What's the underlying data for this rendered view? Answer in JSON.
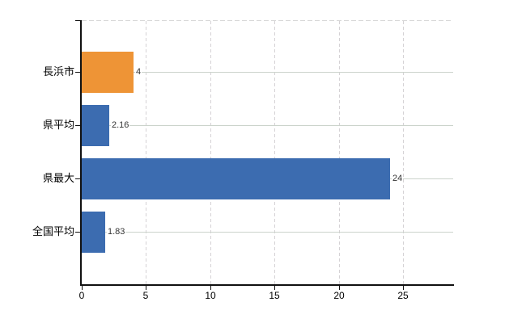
{
  "chart_data": {
    "type": "bar",
    "orientation": "horizontal",
    "title": "",
    "xlabel": "",
    "ylabel": "",
    "categories": [
      "長浜市",
      "県平均",
      "県最大",
      "全国平均"
    ],
    "values": [
      4,
      2.16,
      24,
      1.83
    ],
    "value_labels": [
      "4",
      "2.16",
      "24",
      "1.83"
    ],
    "bar_colors": [
      "#EE9436",
      "#3C6CB0",
      "#3C6CB0",
      "#3C6CB0"
    ],
    "x_ticks": [
      0,
      5,
      10,
      15,
      20,
      25
    ],
    "x_tick_labels": [
      "0",
      "5",
      "10",
      "15",
      "20",
      "25"
    ],
    "xlim": [
      0,
      28.9
    ],
    "grid": {
      "vertical": "dashed",
      "horizontal": "solid-per-category",
      "top_border": "dashed",
      "legend": "none"
    },
    "colors": {
      "bar_blue": "#3C6CB0",
      "bar_orange": "#EE9436",
      "axis": "#111111",
      "vertical_grid": "#d5d2d5",
      "horizontal_grid": "#cbd3cb",
      "top_border": "#d8d8d8",
      "value_text": "#333333",
      "label_text": "#000000",
      "background": "#ffffff"
    }
  }
}
